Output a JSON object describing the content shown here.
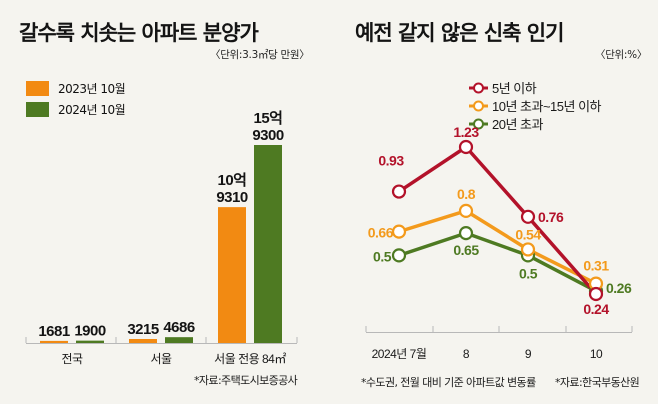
{
  "colors": {
    "orange": "#f28a12",
    "green": "#4e7a22",
    "red": "#b3122a",
    "lineOrange": "#f39a1c",
    "lineGreen": "#4e7a22",
    "axis": "#b8b8b8"
  },
  "chart_data": [
    {
      "type": "bar",
      "title": "갈수록 치솟는 아파트 분양가",
      "unit_label": "〈단위:3.3㎡당 만원〉",
      "categories": [
        "전국",
        "서울",
        "서울 전용 84㎡"
      ],
      "series": [
        {
          "name": "2023년 10월",
          "color": "#f28a12",
          "values": [
            1681,
            3215,
            109310
          ],
          "labels": [
            [
              "1681"
            ],
            [
              "3215"
            ],
            [
              "10억",
              "9310"
            ]
          ]
        },
        {
          "name": "2024년 10월",
          "color": "#4e7a22",
          "values": [
            1900,
            4686,
            159300
          ],
          "labels": [
            [
              "1900"
            ],
            [
              "4686"
            ],
            [
              "15억",
              "9300"
            ]
          ]
        }
      ],
      "source": "*자료:주택도시보증공사"
    },
    {
      "type": "line",
      "title": "예전 같지 않은 신축 인기",
      "unit_label": "〈단위:%〉",
      "categories": [
        "2024년 7월",
        "8",
        "9",
        "10"
      ],
      "series": [
        {
          "name": "5년 이하",
          "color": "#b3122a",
          "values": [
            0.93,
            1.23,
            0.76,
            0.24
          ],
          "labels": [
            "0.93",
            "1.23",
            "0.76",
            "0.24"
          ]
        },
        {
          "name": "10년 초과~15년 이하",
          "color": "#f39a1c",
          "values": [
            0.66,
            0.8,
            0.54,
            0.31
          ],
          "labels": [
            "0.66",
            "0.8",
            "0.54",
            "0.31"
          ]
        },
        {
          "name": "20년 초과",
          "color": "#4e7a22",
          "values": [
            0.5,
            0.65,
            0.5,
            0.26
          ],
          "labels": [
            "0.5",
            "0.65",
            "0.5",
            "0.26"
          ]
        }
      ],
      "footnote": "*수도권, 전월 대비 기준 아파트값 변동률",
      "source": "*자료:한국부동산원"
    }
  ]
}
